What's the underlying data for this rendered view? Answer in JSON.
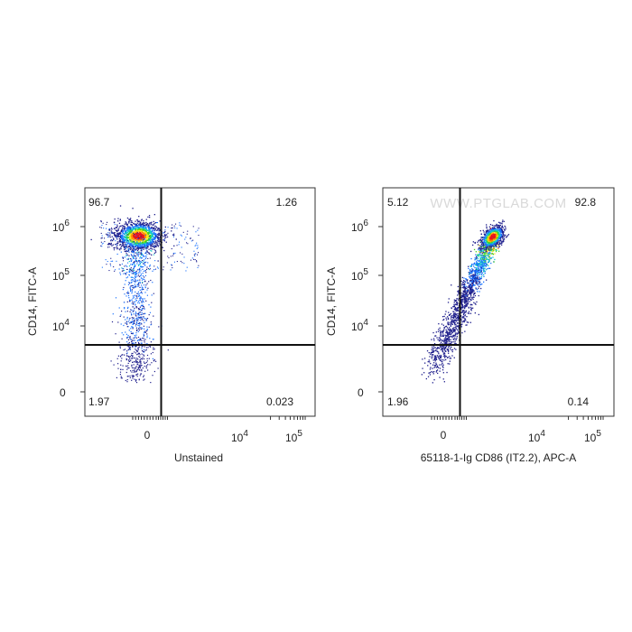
{
  "chart_data": [
    {
      "type": "scatter",
      "subtype": "flow-cytometry-density-dot-plot",
      "xlabel": "Unstained",
      "ylabel": "CD14, FITC-A",
      "x_ticks": [
        "0",
        "10^4",
        "10^5"
      ],
      "y_ticks": [
        "0",
        "10^4",
        "10^5",
        "10^6"
      ],
      "scale": "biexponential",
      "quadrants": {
        "top_left": "96.7",
        "top_right": "1.26",
        "bottom_left": "1.97",
        "bottom_right": "0.023"
      },
      "population": {
        "main_cluster_x": "≈0",
        "main_cluster_y": "≈5×10^5"
      },
      "colors": [
        "#1e1e8c",
        "#1a72ff",
        "#12c8c8",
        "#44d21c",
        "#ffe31a",
        "#ff8a00",
        "#e8141c"
      ]
    },
    {
      "type": "scatter",
      "subtype": "flow-cytometry-density-dot-plot",
      "xlabel": "65118-1-Ig CD86 (IT2.2), APC-A",
      "ylabel": "CD14, FITC-A",
      "x_ticks": [
        "0",
        "10^4",
        "10^5"
      ],
      "y_ticks": [
        "0",
        "10^4",
        "10^5",
        "10^6"
      ],
      "scale": "biexponential",
      "quadrants": {
        "top_left": "5.12",
        "top_right": "92.8",
        "bottom_left": "1.96",
        "bottom_right": "0.14"
      },
      "population": {
        "main_cluster": "diagonal, peak at high CD86 / high CD14"
      },
      "watermark": "WWW.PTGLAB.COM",
      "colors": [
        "#1e1e8c",
        "#1a72ff",
        "#12c8c8",
        "#44d21c",
        "#ffe31a",
        "#ff8a00",
        "#e8141c"
      ]
    }
  ]
}
